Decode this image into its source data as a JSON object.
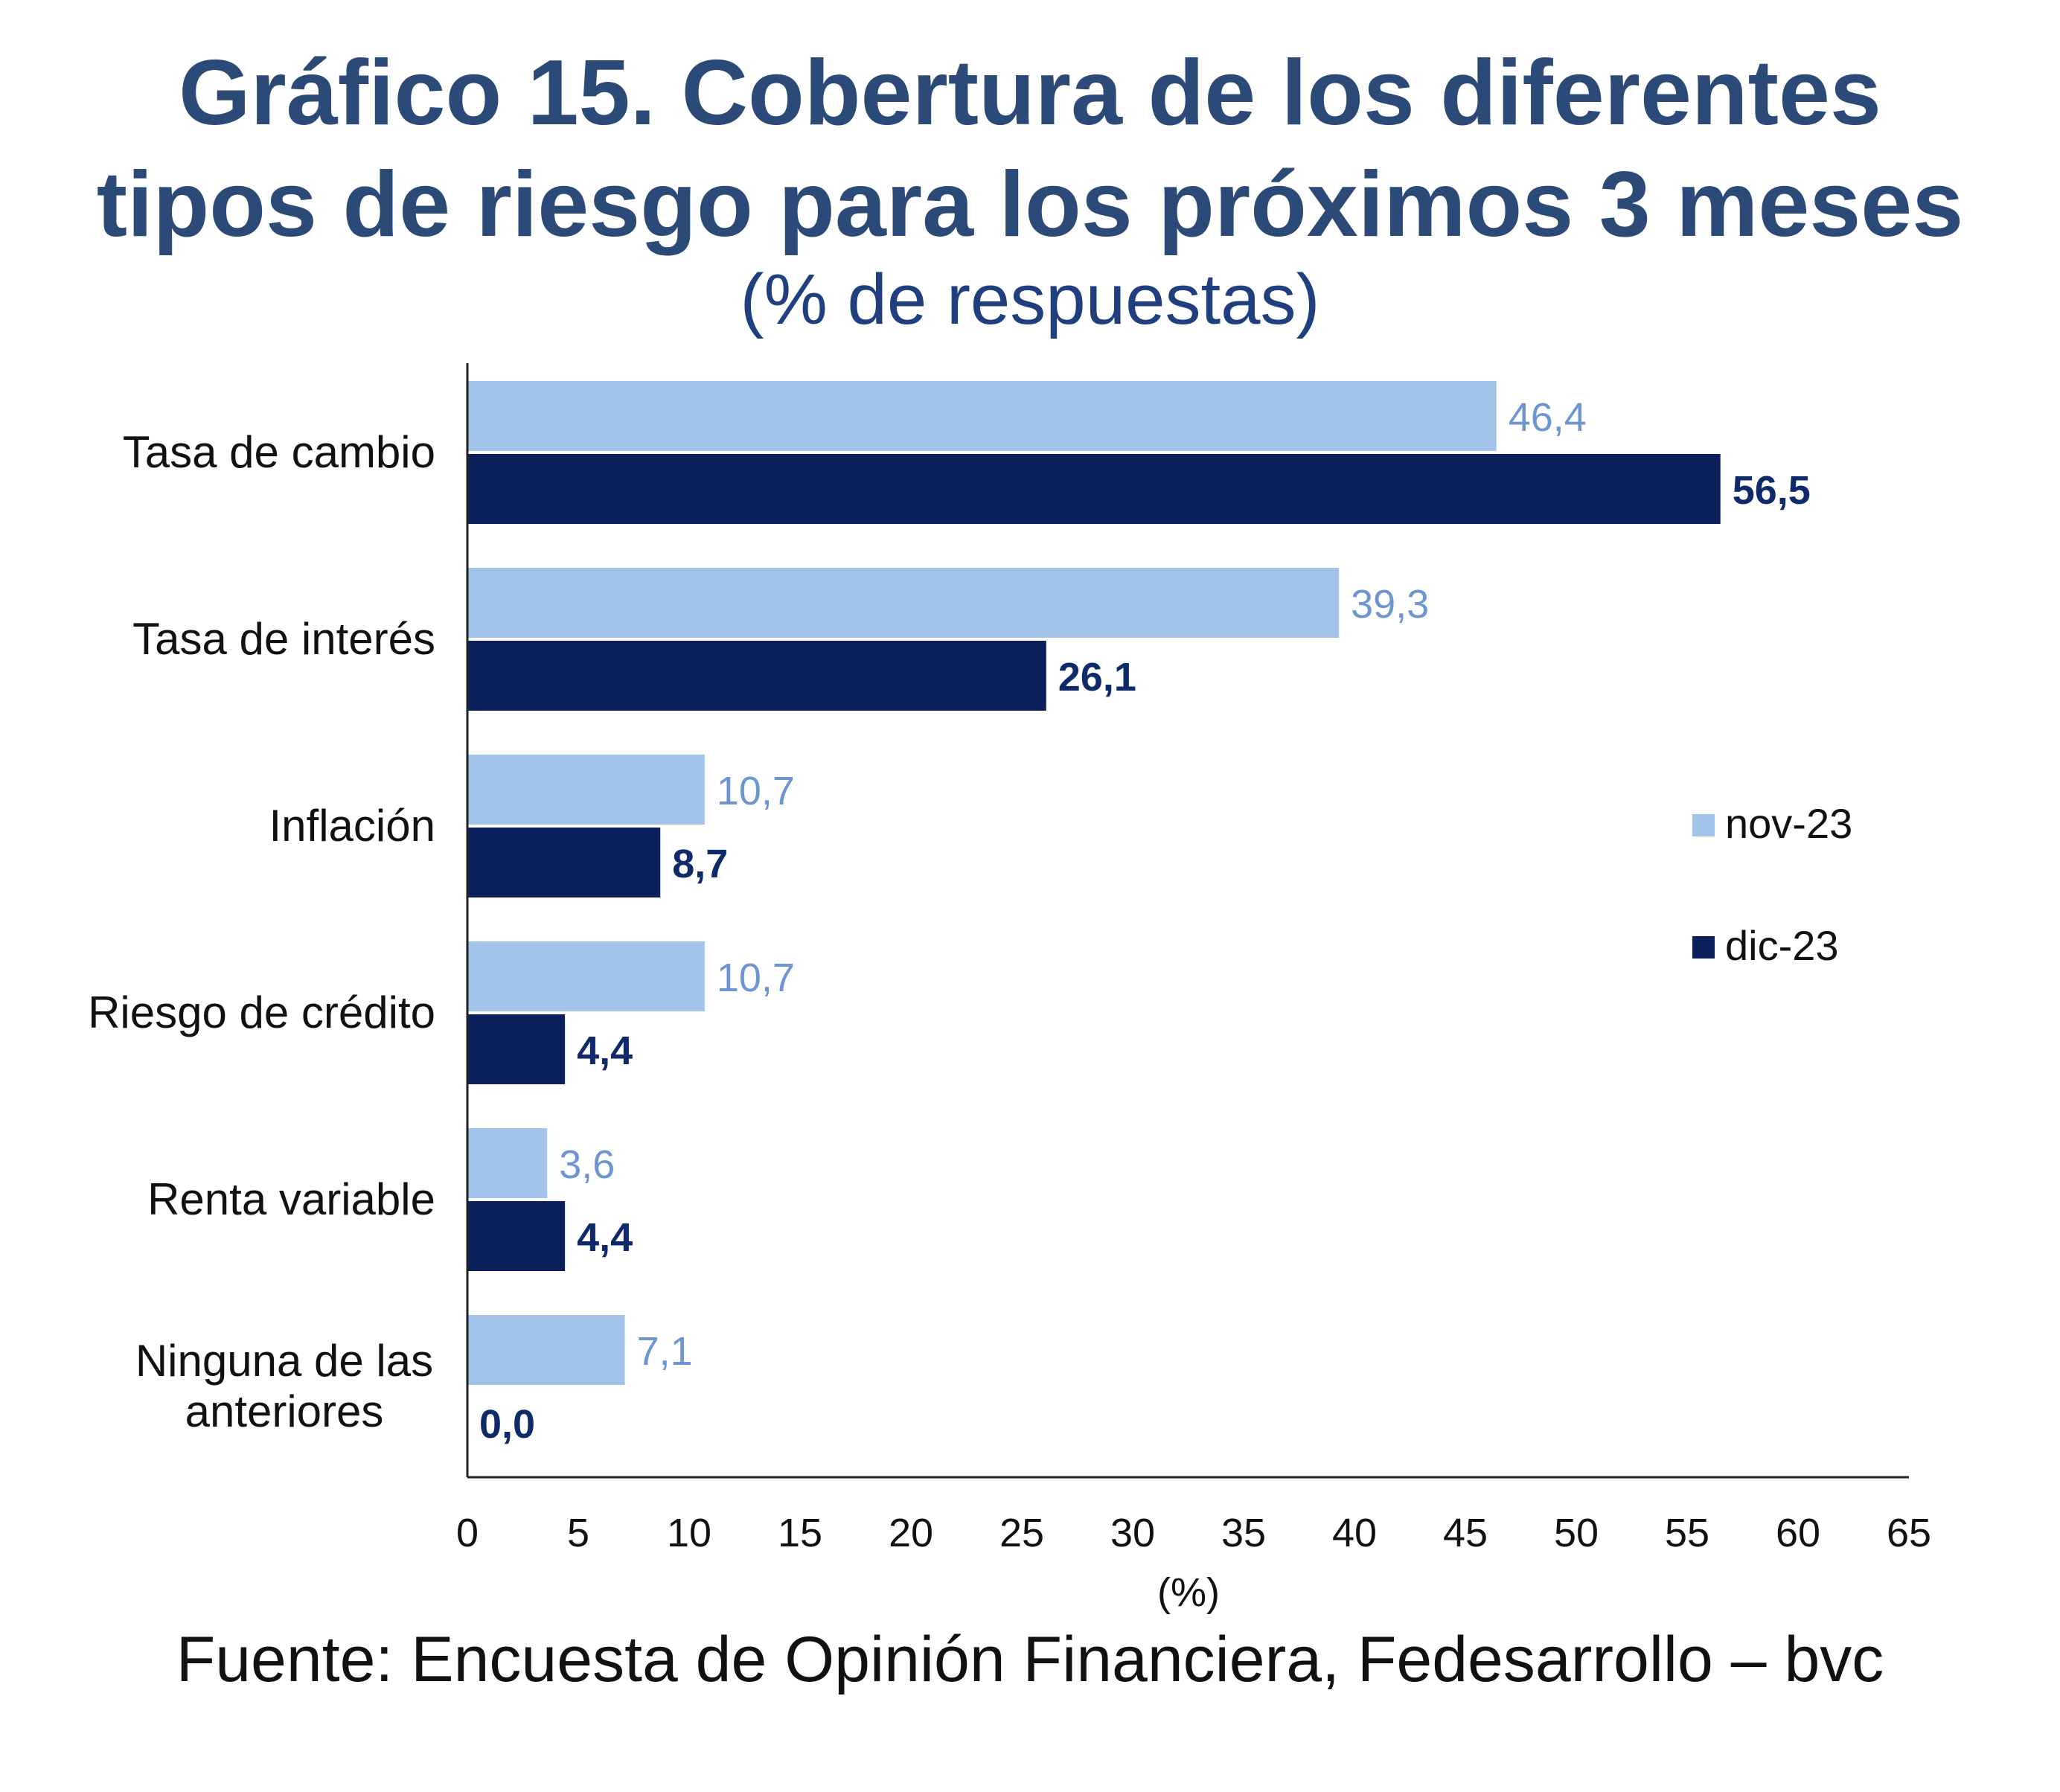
{
  "header": {
    "title_line1": "Gráfico 15. Cobertura de los diferentes",
    "title_line2": "tipos de riesgo para los próximos 3 meses",
    "subtitle": "(% de respuestas)"
  },
  "footer": {
    "source": "Fuente: Encuesta de Opinión Financiera, Fedesarrollo – bvc"
  },
  "colors": {
    "nov_23": "#a3c4ea",
    "dic_23": "#0c215c",
    "nov_23_label": "#6d95d2",
    "dic_23_label": "#0f2a6b"
  },
  "chart_data": {
    "type": "bar",
    "orientation": "horizontal",
    "title": "Gráfico 15. Cobertura de los diferentes tipos de riesgo para los próximos 3 meses",
    "subtitle": "(% de respuestas)",
    "xlabel": "(%)",
    "ylabel": "",
    "xlim": [
      0,
      65
    ],
    "x_ticks": [
      "0",
      "5",
      "10",
      "15",
      "20",
      "25",
      "30",
      "35",
      "40",
      "45",
      "50",
      "55",
      "60",
      "65"
    ],
    "grid": false,
    "legend_position": "right",
    "categories": [
      [
        "Tasa de cambio"
      ],
      [
        "Tasa de interés"
      ],
      [
        "Inflación"
      ],
      [
        "Riesgo de crédito"
      ],
      [
        "Renta variable"
      ],
      [
        "Ninguna de las",
        "anteriores"
      ]
    ],
    "series": [
      {
        "name": "nov-23",
        "values": [
          46.4,
          39.3,
          10.7,
          10.7,
          3.6,
          7.1
        ],
        "labels": [
          "46,4",
          "39,3",
          "10,7",
          "10,7",
          "3,6",
          "7,1"
        ]
      },
      {
        "name": "dic-23",
        "values": [
          56.5,
          26.1,
          8.7,
          4.4,
          4.4,
          0.0
        ],
        "labels": [
          "56,5",
          "26,1",
          "8,7",
          "4,4",
          "4,4",
          "0,0"
        ]
      }
    ]
  }
}
